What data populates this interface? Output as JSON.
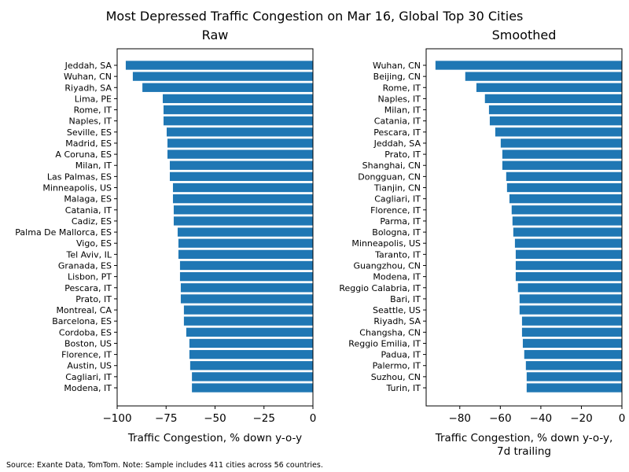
{
  "figure": {
    "title": "Most Depressed Traffic Congestion on Mar 16, Global Top 30 Cities",
    "footnote": "Source: Exante Data, TomTom.   Note: Sample includes 411 cities across 56 countries.",
    "bar_color": "#1f77b4"
  },
  "chart_data": [
    {
      "type": "bar",
      "orientation": "horizontal",
      "title": "Raw",
      "xlabel": "Traffic Congestion, % down y-o-y",
      "ylabel": "",
      "xlim": [
        -100,
        0
      ],
      "xticks": [
        -100,
        -75,
        -50,
        -25,
        0
      ],
      "xtick_labels": [
        "−100",
        "−75",
        "−50",
        "−25",
        "0"
      ],
      "grid": false,
      "categories": [
        "Jeddah, SA",
        "Wuhan, CN",
        "Riyadh, SA",
        "Lima, PE",
        "Rome, IT",
        "Naples, IT",
        "Seville, ES",
        "Madrid, ES",
        "A Coruna, ES",
        "Milan, IT",
        "Las Palmas, ES",
        "Minneapolis, US",
        "Malaga, ES",
        "Catania, IT",
        "Cadiz, ES",
        "Palma De Mallorca, ES",
        "Vigo, ES",
        "Tel Aviv, IL",
        "Granada, ES",
        "Lisbon, PT",
        "Pescara, IT",
        "Prato, IT",
        "Montreal, CA",
        "Barcelona, ES",
        "Cordoba, ES",
        "Boston, US",
        "Florence, IT",
        "Austin, US",
        "Cagliari, IT",
        "Modena, IT"
      ],
      "values": [
        -95.6,
        -92.0,
        -87.1,
        -76.7,
        -76.3,
        -76.3,
        -74.7,
        -74.3,
        -74.3,
        -73.1,
        -73.1,
        -71.5,
        -71.5,
        -71.1,
        -71.1,
        -69.1,
        -68.7,
        -68.7,
        -67.9,
        -67.9,
        -67.5,
        -67.5,
        -65.9,
        -65.9,
        -64.7,
        -63.1,
        -63.1,
        -62.7,
        -61.8,
        -61.8
      ]
    },
    {
      "type": "bar",
      "orientation": "horizontal",
      "title": "Smoothed",
      "xlabel": "Traffic Congestion, % down y-o-y,",
      "xlabel_line2": "7d trailing",
      "ylabel": "",
      "xlim": [
        -96.6,
        0
      ],
      "xticks": [
        -80,
        -60,
        -40,
        -20,
        0
      ],
      "xtick_labels": [
        "−80",
        "−60",
        "−40",
        "−20",
        "0"
      ],
      "grid": false,
      "categories": [
        "Wuhan, CN",
        "Beijing, CN",
        "Rome, IT",
        "Naples, IT",
        "Milan, IT",
        "Catania, IT",
        "Pescara, IT",
        "Jeddah, SA",
        "Prato, IT",
        "Shanghai, CN",
        "Dongguan, CN",
        "Tianjin, CN",
        "Cagliari, IT",
        "Florence, IT",
        "Parma, IT",
        "Bologna, IT",
        "Minneapolis, US",
        "Taranto, IT",
        "Guangzhou, CN",
        "Modena, IT",
        "Reggio Calabria, IT",
        "Bari, IT",
        "Seattle, US",
        "Riyadh, SA",
        "Changsha, CN",
        "Reggio Emilia, IT",
        "Padua, IT",
        "Palermo, IT",
        "Suzhou, CN",
        "Turin, IT"
      ],
      "values": [
        -92.0,
        -77.3,
        -71.8,
        -67.6,
        -65.6,
        -65.2,
        -62.5,
        -59.8,
        -59.0,
        -59.0,
        -57.1,
        -56.7,
        -55.5,
        -54.4,
        -54.0,
        -53.6,
        -52.8,
        -52.4,
        -52.4,
        -52.4,
        -51.3,
        -50.5,
        -50.5,
        -49.3,
        -49.3,
        -48.9,
        -48.2,
        -47.4,
        -47.0,
        -47.0
      ]
    }
  ]
}
